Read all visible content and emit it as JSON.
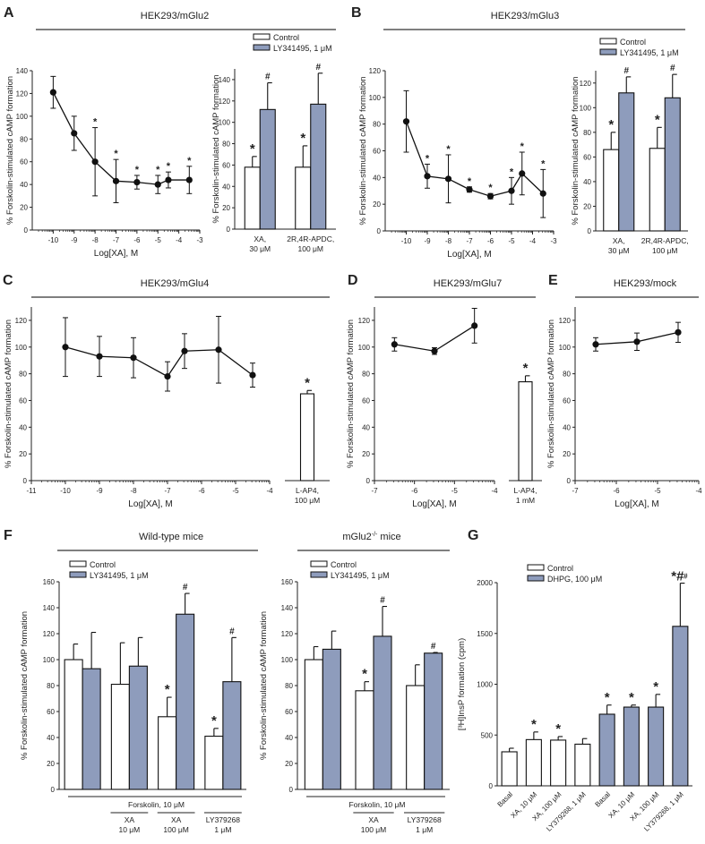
{
  "colors": {
    "control": "#ffffff",
    "treated": "#8e9cbc",
    "axis": "#222222",
    "header_line": "#333333"
  },
  "panels": [
    {
      "label": "A",
      "title": "HEK293/mGlu2"
    },
    {
      "label": "B",
      "title": "HEK293/mGlu3"
    },
    {
      "label": "C",
      "title": "HEK293/mGlu4"
    },
    {
      "label": "D",
      "title": "HEK293/mGlu7"
    },
    {
      "label": "E",
      "title": "HEK293/mock"
    },
    {
      "label": "F",
      "title": "Wild-type mice",
      "title2_main": "mGlu2",
      "title2_sup": "-/-",
      "title2_rest": " mice"
    },
    {
      "label": "G",
      "title": ""
    }
  ],
  "chart_data": [
    {
      "panel": "A",
      "type": "line",
      "xlabel": "Log[XA], M",
      "ylabel": "% Forskolin-stimulated cAMP formation",
      "xlim": [
        -11,
        -3
      ],
      "ylim": [
        0,
        140
      ],
      "xticks": [
        -10,
        -9,
        -8,
        -7,
        -6,
        -5,
        -4,
        -3
      ],
      "yticks": [
        0,
        20,
        40,
        60,
        80,
        100,
        120,
        140
      ],
      "log_minor_ticks": true,
      "x": [
        -10,
        -9,
        -8,
        -7,
        -6,
        -5,
        -4.5,
        -3.5
      ],
      "y": [
        121,
        85,
        60,
        43,
        42,
        40,
        44,
        44
      ],
      "error": [
        14,
        15,
        30,
        19,
        6,
        8,
        7,
        12
      ],
      "marks": [
        "",
        "",
        "*",
        "*",
        "*",
        "*",
        "*",
        "*"
      ]
    },
    {
      "panel": "A",
      "type": "bar",
      "ylabel": "% Forskolin-stimulated cAMP formation",
      "ylim": [
        0,
        150
      ],
      "yticks": [
        0,
        20,
        40,
        60,
        80,
        100,
        120,
        140
      ],
      "categories": [
        [
          "XA,",
          "30 μM"
        ],
        [
          "2R,4R-APDC,",
          "100 μM"
        ]
      ],
      "series": [
        {
          "name": "Control",
          "values": [
            58,
            58
          ],
          "error": [
            10,
            20
          ],
          "marks": [
            "*",
            "*"
          ]
        },
        {
          "name": "LY341495, 1 μM",
          "values": [
            112,
            117
          ],
          "error": [
            25,
            29
          ],
          "marks": [
            "#",
            "#"
          ]
        }
      ],
      "legend": "top"
    },
    {
      "panel": "B",
      "type": "line",
      "xlabel": "Log[XA], M",
      "ylabel": "% Forskolin-stimulated cAMP formation",
      "xlim": [
        -11,
        -3
      ],
      "ylim": [
        0,
        120
      ],
      "xticks": [
        -10,
        -9,
        -8,
        -7,
        -6,
        -5,
        -4,
        -3
      ],
      "yticks": [
        0,
        20,
        40,
        60,
        80,
        100,
        120
      ],
      "log_minor_ticks": true,
      "x": [
        -10,
        -9,
        -8,
        -7,
        -6,
        -5,
        -4.5,
        -3.5
      ],
      "y": [
        82,
        41,
        39,
        31,
        26,
        30,
        43,
        28
      ],
      "error": [
        23,
        9,
        18,
        2,
        2,
        10,
        16,
        18
      ],
      "marks": [
        "",
        "*",
        "*",
        "*",
        "*",
        "*",
        "*",
        "*"
      ]
    },
    {
      "panel": "B",
      "type": "bar",
      "ylabel": "% Forskolin-stimulated cAMP formation",
      "ylim": [
        0,
        130
      ],
      "yticks": [
        0,
        20,
        40,
        60,
        80,
        100,
        120
      ],
      "categories": [
        [
          "XA,",
          "30 μM"
        ],
        [
          "2R,4R-APDC,",
          "100 μM"
        ]
      ],
      "series": [
        {
          "name": "Control",
          "values": [
            66,
            67
          ],
          "error": [
            14,
            17
          ],
          "marks": [
            "*",
            "*"
          ]
        },
        {
          "name": "LY341495, 1 μM",
          "values": [
            112,
            108
          ],
          "error": [
            13,
            19
          ],
          "marks": [
            "#",
            "#"
          ]
        }
      ],
      "legend": "top"
    },
    {
      "panel": "C",
      "type": "line",
      "xlabel": "Log[XA], M",
      "ylabel": "% Forskolin-stimulated cAMP formation",
      "xlim": [
        -11,
        -4
      ],
      "ylim": [
        0,
        130
      ],
      "xticks": [
        -11,
        -10,
        -9,
        -8,
        -7,
        -6,
        -5,
        -4
      ],
      "yticks": [
        0,
        20,
        40,
        60,
        80,
        100,
        120
      ],
      "log_minor_ticks": true,
      "x": [
        -10,
        -9,
        -8,
        -7,
        -6.5,
        -5.5,
        -4.5
      ],
      "y": [
        100,
        93,
        92,
        78,
        97,
        98,
        79
      ],
      "error": [
        22,
        15,
        15,
        11,
        13,
        25,
        9
      ],
      "marks": [
        "",
        "",
        "",
        "",
        "",
        "",
        ""
      ]
    },
    {
      "panel": "C",
      "type": "bar",
      "ylim": [
        0,
        130
      ],
      "categories": [
        [
          "L-AP4,",
          "100 μM"
        ]
      ],
      "series": [
        {
          "values": [
            65
          ],
          "error": [
            2.5
          ],
          "marks": [
            "*"
          ]
        }
      ]
    },
    {
      "panel": "D",
      "type": "line",
      "xlabel": "Log[XA], M",
      "ylabel": "% Forskolin-stimulated cAMP formation",
      "xlim": [
        -7,
        -4
      ],
      "ylim": [
        0,
        130
      ],
      "xticks": [
        -7,
        -6,
        -5,
        -4
      ],
      "yticks": [
        0,
        20,
        40,
        60,
        80,
        100,
        120
      ],
      "log_minor_ticks": true,
      "x": [
        -6.5,
        -5.5,
        -4.5
      ],
      "y": [
        102,
        97,
        116
      ],
      "error": [
        5,
        2.5,
        13
      ],
      "marks": [
        "",
        "",
        ""
      ]
    },
    {
      "panel": "D",
      "type": "bar",
      "ylim": [
        0,
        130
      ],
      "categories": [
        [
          "L-AP4,",
          "1 mM"
        ]
      ],
      "series": [
        {
          "values": [
            74
          ],
          "error": [
            4.5
          ],
          "marks": [
            "*"
          ]
        }
      ]
    },
    {
      "panel": "E",
      "type": "line",
      "xlabel": "Log[XA], M",
      "ylabel": "% Forskolin-stimulated cAMP formation",
      "xlim": [
        -7,
        -4
      ],
      "ylim": [
        0,
        130
      ],
      "xticks": [
        -7,
        -6,
        -5,
        -4
      ],
      "yticks": [
        0,
        20,
        40,
        60,
        80,
        100,
        120
      ],
      "log_minor_ticks": true,
      "x": [
        -6.5,
        -5.5,
        -4.5
      ],
      "y": [
        102,
        104,
        111
      ],
      "error": [
        5,
        6.5,
        7.5
      ],
      "marks": [
        "",
        "",
        ""
      ]
    },
    {
      "panel": "F",
      "type": "bar",
      "ylabel": "% Forskolin-stimulated cAMP formation",
      "ylim": [
        0,
        160
      ],
      "yticks": [
        0,
        20,
        40,
        60,
        80,
        100,
        120,
        140,
        160
      ],
      "baseline_label": "Forskolin, 10 μM",
      "categories": [
        [],
        [
          "XA",
          "10 μM"
        ],
        [
          "XA",
          "100 μM"
        ],
        [
          "LY379268",
          "1 μM"
        ]
      ],
      "series": [
        {
          "name": "Control",
          "values": [
            100,
            81,
            56,
            41
          ],
          "error": [
            12,
            32,
            15,
            6
          ],
          "marks": [
            "",
            "",
            "*",
            "*"
          ]
        },
        {
          "name": "LY341495, 1 μM",
          "values": [
            93,
            95,
            135,
            83
          ],
          "error": [
            28,
            22,
            16,
            34
          ],
          "marks": [
            "",
            "",
            "#",
            "#"
          ]
        }
      ],
      "legend": "top-left"
    },
    {
      "panel": "F",
      "type": "bar",
      "ylabel": "% Forskolin-stimulated cAMP formation",
      "ylim": [
        0,
        160
      ],
      "yticks": [
        0,
        20,
        40,
        60,
        80,
        100,
        120,
        140,
        160
      ],
      "baseline_label": "Forskolin, 10 μM",
      "categories": [
        [],
        [
          "XA",
          "100 μM"
        ],
        [
          "LY379268",
          "1 μM"
        ]
      ],
      "series": [
        {
          "name": "Control",
          "values": [
            100,
            76,
            80
          ],
          "error": [
            10,
            7,
            16
          ],
          "marks": [
            "",
            "*",
            ""
          ]
        },
        {
          "name": "LY341495, 1 μM",
          "values": [
            108,
            118,
            105
          ],
          "error": [
            14,
            23,
            0.5
          ],
          "marks": [
            "",
            "#",
            "#"
          ]
        }
      ],
      "legend": "top-left"
    },
    {
      "panel": "G",
      "type": "bar",
      "ylabel": "[³H]InsP formation (cpm)",
      "ylim": [
        0,
        2000
      ],
      "yticks": [
        0,
        500,
        1000,
        1500,
        2000
      ],
      "categories": [
        [
          "Basal"
        ],
        [
          "XA, 10 μM"
        ],
        [
          "XA, 100 μM"
        ],
        [
          "LY379268, 1 μM"
        ],
        [
          "Basal"
        ],
        [
          "XA, 10 μM"
        ],
        [
          "XA, 100 μM"
        ],
        [
          "LY379268, 1 μM"
        ]
      ],
      "rotated_labels": true,
      "series": [
        {
          "name": "Control",
          "values": [
            335,
            455,
            450,
            410,
            null,
            null,
            null,
            null
          ],
          "error": [
            35,
            75,
            35,
            55,
            null,
            null,
            null,
            null
          ],
          "marks": [
            "",
            "*",
            "*",
            "",
            "",
            "",
            "",
            ""
          ]
        },
        {
          "name": "DHPG, 100 μM",
          "values": [
            null,
            null,
            null,
            null,
            705,
            775,
            775,
            1570
          ],
          "error": [
            null,
            null,
            null,
            null,
            90,
            20,
            125,
            425
          ],
          "marks": [
            "",
            "",
            "",
            "",
            "*",
            "*",
            "*",
            "*#"
          ]
        }
      ],
      "legend": "top-left"
    }
  ]
}
